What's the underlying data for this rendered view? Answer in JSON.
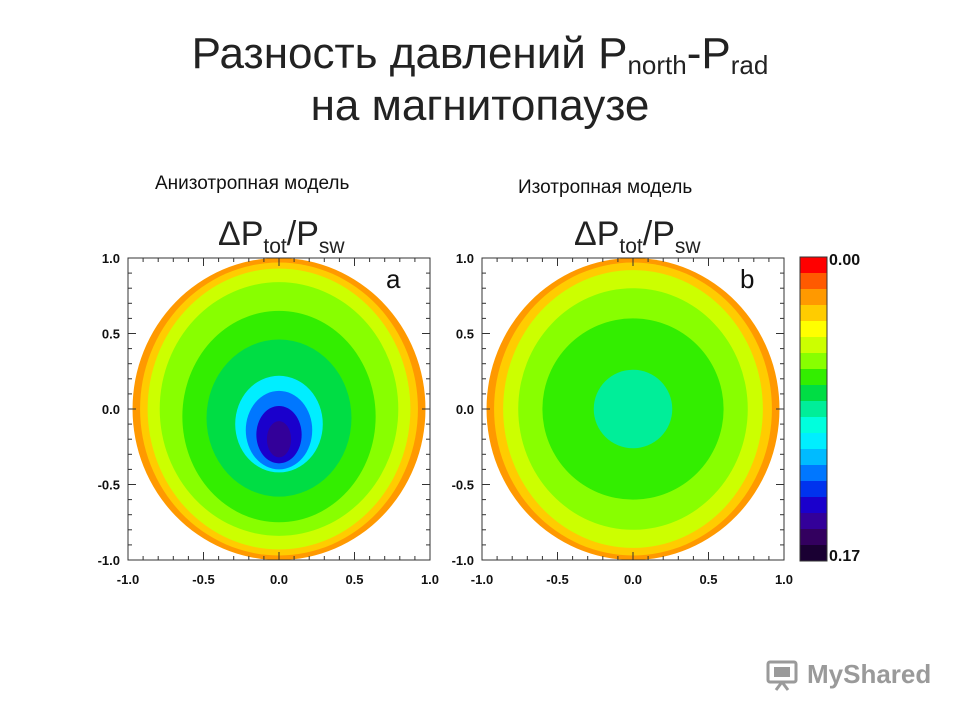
{
  "slide": {
    "title_line1_prefix": "Разность давлений P",
    "title_sub1": "north",
    "title_dash": "-P",
    "title_sub2": "rad",
    "title_line2": "на магнитопаузе"
  },
  "labels": {
    "anisotropic": "Анизотропная модель",
    "isotropic": "Изотропная модель"
  },
  "watermark": {
    "text": "MyShared"
  },
  "colors": {
    "cb": [
      "#ff0000",
      "#ff5a00",
      "#ff9900",
      "#ffcc00",
      "#ffff00",
      "#ccff00",
      "#88ff00",
      "#33ee00",
      "#00dd44",
      "#00ee99",
      "#00ffdd",
      "#00eeff",
      "#00bbff",
      "#0077ff",
      "#0033ee",
      "#1a00cc",
      "#330099",
      "#33005f",
      "#1a0033"
    ]
  },
  "chart_data": [
    {
      "type": "heatmap",
      "panel_letter": "a",
      "title_main": "ΔP",
      "title_sub1": "tot",
      "title_slash": "/P",
      "title_sub2": "sw",
      "x_ticks": [
        "-1.0",
        "-0.5",
        "0.0",
        "0.5",
        "1.0"
      ],
      "y_ticks": [
        "1.0",
        "0.5",
        "0.0",
        "-0.5",
        "-1.0"
      ],
      "xlim": [
        -1.0,
        1.0
      ],
      "ylim": [
        -1.0,
        1.0
      ],
      "value_range": [
        0.0,
        0.17
      ],
      "contours": [
        {
          "level": 0.02,
          "cx": 0.0,
          "cy": 0.0,
          "rx": 0.97,
          "ry": 1.0
        },
        {
          "level": 0.03,
          "cx": 0.0,
          "cy": 0.0,
          "rx": 0.92,
          "ry": 0.97
        },
        {
          "level": 0.045,
          "cx": 0.0,
          "cy": 0.0,
          "rx": 0.87,
          "ry": 0.93
        },
        {
          "level": 0.06,
          "cx": 0.0,
          "cy": 0.0,
          "rx": 0.79,
          "ry": 0.84
        },
        {
          "level": 0.07,
          "cx": 0.0,
          "cy": -0.05,
          "rx": 0.64,
          "ry": 0.7
        },
        {
          "level": 0.08,
          "cx": 0.0,
          "cy": -0.06,
          "rx": 0.48,
          "ry": 0.52
        },
        {
          "level": 0.105,
          "cx": 0.0,
          "cy": -0.1,
          "rx": 0.29,
          "ry": 0.32
        },
        {
          "level": 0.125,
          "cx": 0.0,
          "cy": -0.14,
          "rx": 0.22,
          "ry": 0.26
        },
        {
          "level": 0.14,
          "cx": 0.0,
          "cy": -0.17,
          "rx": 0.15,
          "ry": 0.19
        },
        {
          "level": 0.15,
          "cx": 0.0,
          "cy": -0.2,
          "rx": 0.08,
          "ry": 0.12
        }
      ]
    },
    {
      "type": "heatmap",
      "panel_letter": "b",
      "title_main": "ΔP",
      "title_sub1": "tot",
      "title_slash": "/P",
      "title_sub2": "sw",
      "x_ticks": [
        "-1.0",
        "-0.5",
        "0.0",
        "0.5",
        "1.0"
      ],
      "y_ticks": [
        "1.0",
        "0.5",
        "0.0",
        "-0.5",
        "-1.0"
      ],
      "xlim": [
        -1.0,
        1.0
      ],
      "ylim": [
        -1.0,
        1.0
      ],
      "value_range": [
        0.0,
        0.17
      ],
      "contours": [
        {
          "level": 0.02,
          "cx": 0.0,
          "cy": 0.0,
          "rx": 0.97,
          "ry": 1.0
        },
        {
          "level": 0.03,
          "cx": 0.0,
          "cy": 0.0,
          "rx": 0.92,
          "ry": 0.97
        },
        {
          "level": 0.045,
          "cx": 0.0,
          "cy": 0.0,
          "rx": 0.86,
          "ry": 0.92
        },
        {
          "level": 0.06,
          "cx": 0.0,
          "cy": 0.0,
          "rx": 0.76,
          "ry": 0.8
        },
        {
          "level": 0.07,
          "cx": 0.0,
          "cy": 0.0,
          "rx": 0.6,
          "ry": 0.6
        },
        {
          "level": 0.085,
          "cx": 0.0,
          "cy": 0.0,
          "rx": 0.26,
          "ry": 0.26
        }
      ]
    }
  ],
  "colorbar": {
    "top_label": "0.00",
    "bottom_label": "0.17",
    "min": 0.0,
    "max": 0.17
  }
}
